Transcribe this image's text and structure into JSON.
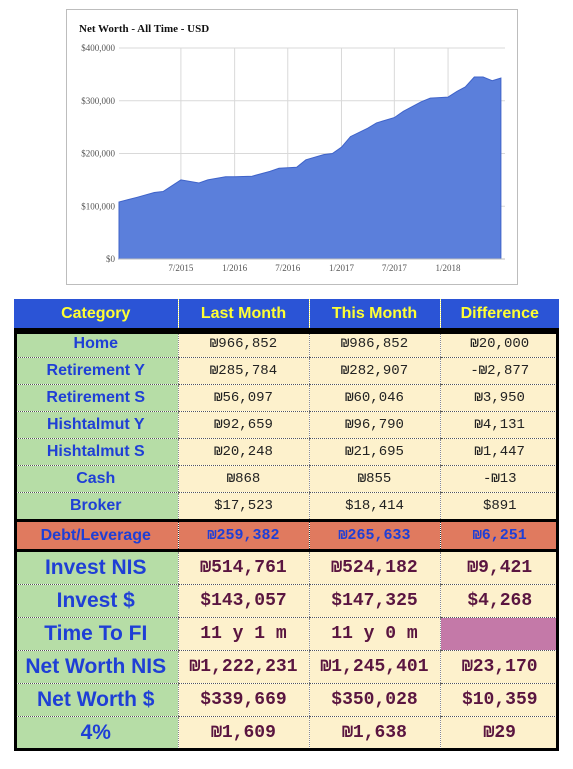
{
  "chart_data": {
    "type": "area",
    "title": "Net Worth - All Time - USD",
    "xlabel": "",
    "ylabel": "",
    "ylim": [
      0,
      400000
    ],
    "yticks": [
      0,
      100000,
      200000,
      300000,
      400000
    ],
    "ytick_labels": [
      "$0",
      "$100,000",
      "$200,000",
      "$300,000",
      "$400,000"
    ],
    "xlim": [
      "2014-12-01",
      "2018-07-15"
    ],
    "xticks": [
      "2015-07-01",
      "2016-01-01",
      "2016-07-01",
      "2017-01-01",
      "2017-07-01",
      "2018-01-01"
    ],
    "xtick_labels": [
      "7/2015",
      "1/2016",
      "7/2016",
      "1/2017",
      "7/2017",
      "1/2018"
    ],
    "grid": true,
    "legend": "none",
    "color": "#5b7fdb",
    "series": [
      {
        "x": [
          "2014-12-01",
          "2015-02-01",
          "2015-04-01",
          "2015-05-01",
          "2015-07-01",
          "2015-09-01",
          "2015-10-01",
          "2015-12-01",
          "2016-01-01",
          "2016-03-01",
          "2016-05-01",
          "2016-06-01",
          "2016-08-01",
          "2016-09-01",
          "2016-11-01",
          "2016-12-01",
          "2017-01-01",
          "2017-02-01",
          "2017-04-01",
          "2017-05-01",
          "2017-07-01",
          "2017-08-01",
          "2017-10-01",
          "2017-11-01",
          "2018-01-01",
          "2018-02-01",
          "2018-03-01",
          "2018-04-01",
          "2018-05-01",
          "2018-06-01",
          "2018-07-01"
        ],
        "y": [
          108000,
          117000,
          126000,
          128000,
          150000,
          144000,
          150000,
          156000,
          156000,
          157000,
          166000,
          172000,
          174000,
          188000,
          198000,
          200000,
          212000,
          232000,
          248000,
          258000,
          268000,
          280000,
          298000,
          305000,
          307000,
          318000,
          326000,
          345000,
          345000,
          338000,
          343000
        ]
      }
    ]
  },
  "table": {
    "headers": [
      "Category",
      "Last Month",
      "This Month",
      "Difference"
    ],
    "rows": [
      {
        "label": "Home",
        "last": "₪966,852",
        "this": "₪986,852",
        "diff": "₪20,000"
      },
      {
        "label": "Retirement Y",
        "last": "₪285,784",
        "this": "₪282,907",
        "diff": "-₪2,877"
      },
      {
        "label": "Retirement S",
        "last": "₪56,097",
        "this": "₪60,046",
        "diff": "₪3,950"
      },
      {
        "label": "Hishtalmut Y",
        "last": "₪92,659",
        "this": "₪96,790",
        "diff": "₪4,131"
      },
      {
        "label": "Hishtalmut S",
        "last": "₪20,248",
        "this": "₪21,695",
        "diff": "₪1,447"
      },
      {
        "label": "Cash",
        "last": "₪868",
        "this": "₪855",
        "diff": "-₪13"
      },
      {
        "label": "Broker",
        "last": "$17,523",
        "this": "$18,414",
        "diff": "$891"
      }
    ],
    "debt": {
      "label": "Debt/Leverage",
      "last": "₪259,382",
      "this": "₪265,633",
      "diff": "₪6,251"
    },
    "summary": [
      {
        "label": "Invest NIS",
        "last": "₪514,761",
        "this": "₪524,182",
        "diff": "₪9,421"
      },
      {
        "label": "Invest $",
        "last": "$143,057",
        "this": "$147,325",
        "diff": "$4,268"
      },
      {
        "label": "Time To FI",
        "last": "11 y 1 m",
        "this": "11 y 0 m",
        "diff": ""
      },
      {
        "label": "Net Worth NIS",
        "last": "₪1,222,231",
        "this": "₪1,245,401",
        "diff": "₪23,170"
      },
      {
        "label": "Net Worth $",
        "last": "$339,669",
        "this": "$350,028",
        "diff": "$10,359"
      },
      {
        "label": "4%",
        "last": "₪1,609",
        "this": "₪1,638",
        "diff": "₪29"
      }
    ]
  },
  "colors": {
    "header_bg": "#2b54d6",
    "header_text": "#ffff33",
    "category_bg": "#b6dda6",
    "category_text": "#1f3fd6",
    "value_bg": "#fdf1cc",
    "debt_bg": "#e07a5f",
    "time_to_fi_diff_bg": "#c479a8",
    "summary_value_text": "#5a1540"
  }
}
